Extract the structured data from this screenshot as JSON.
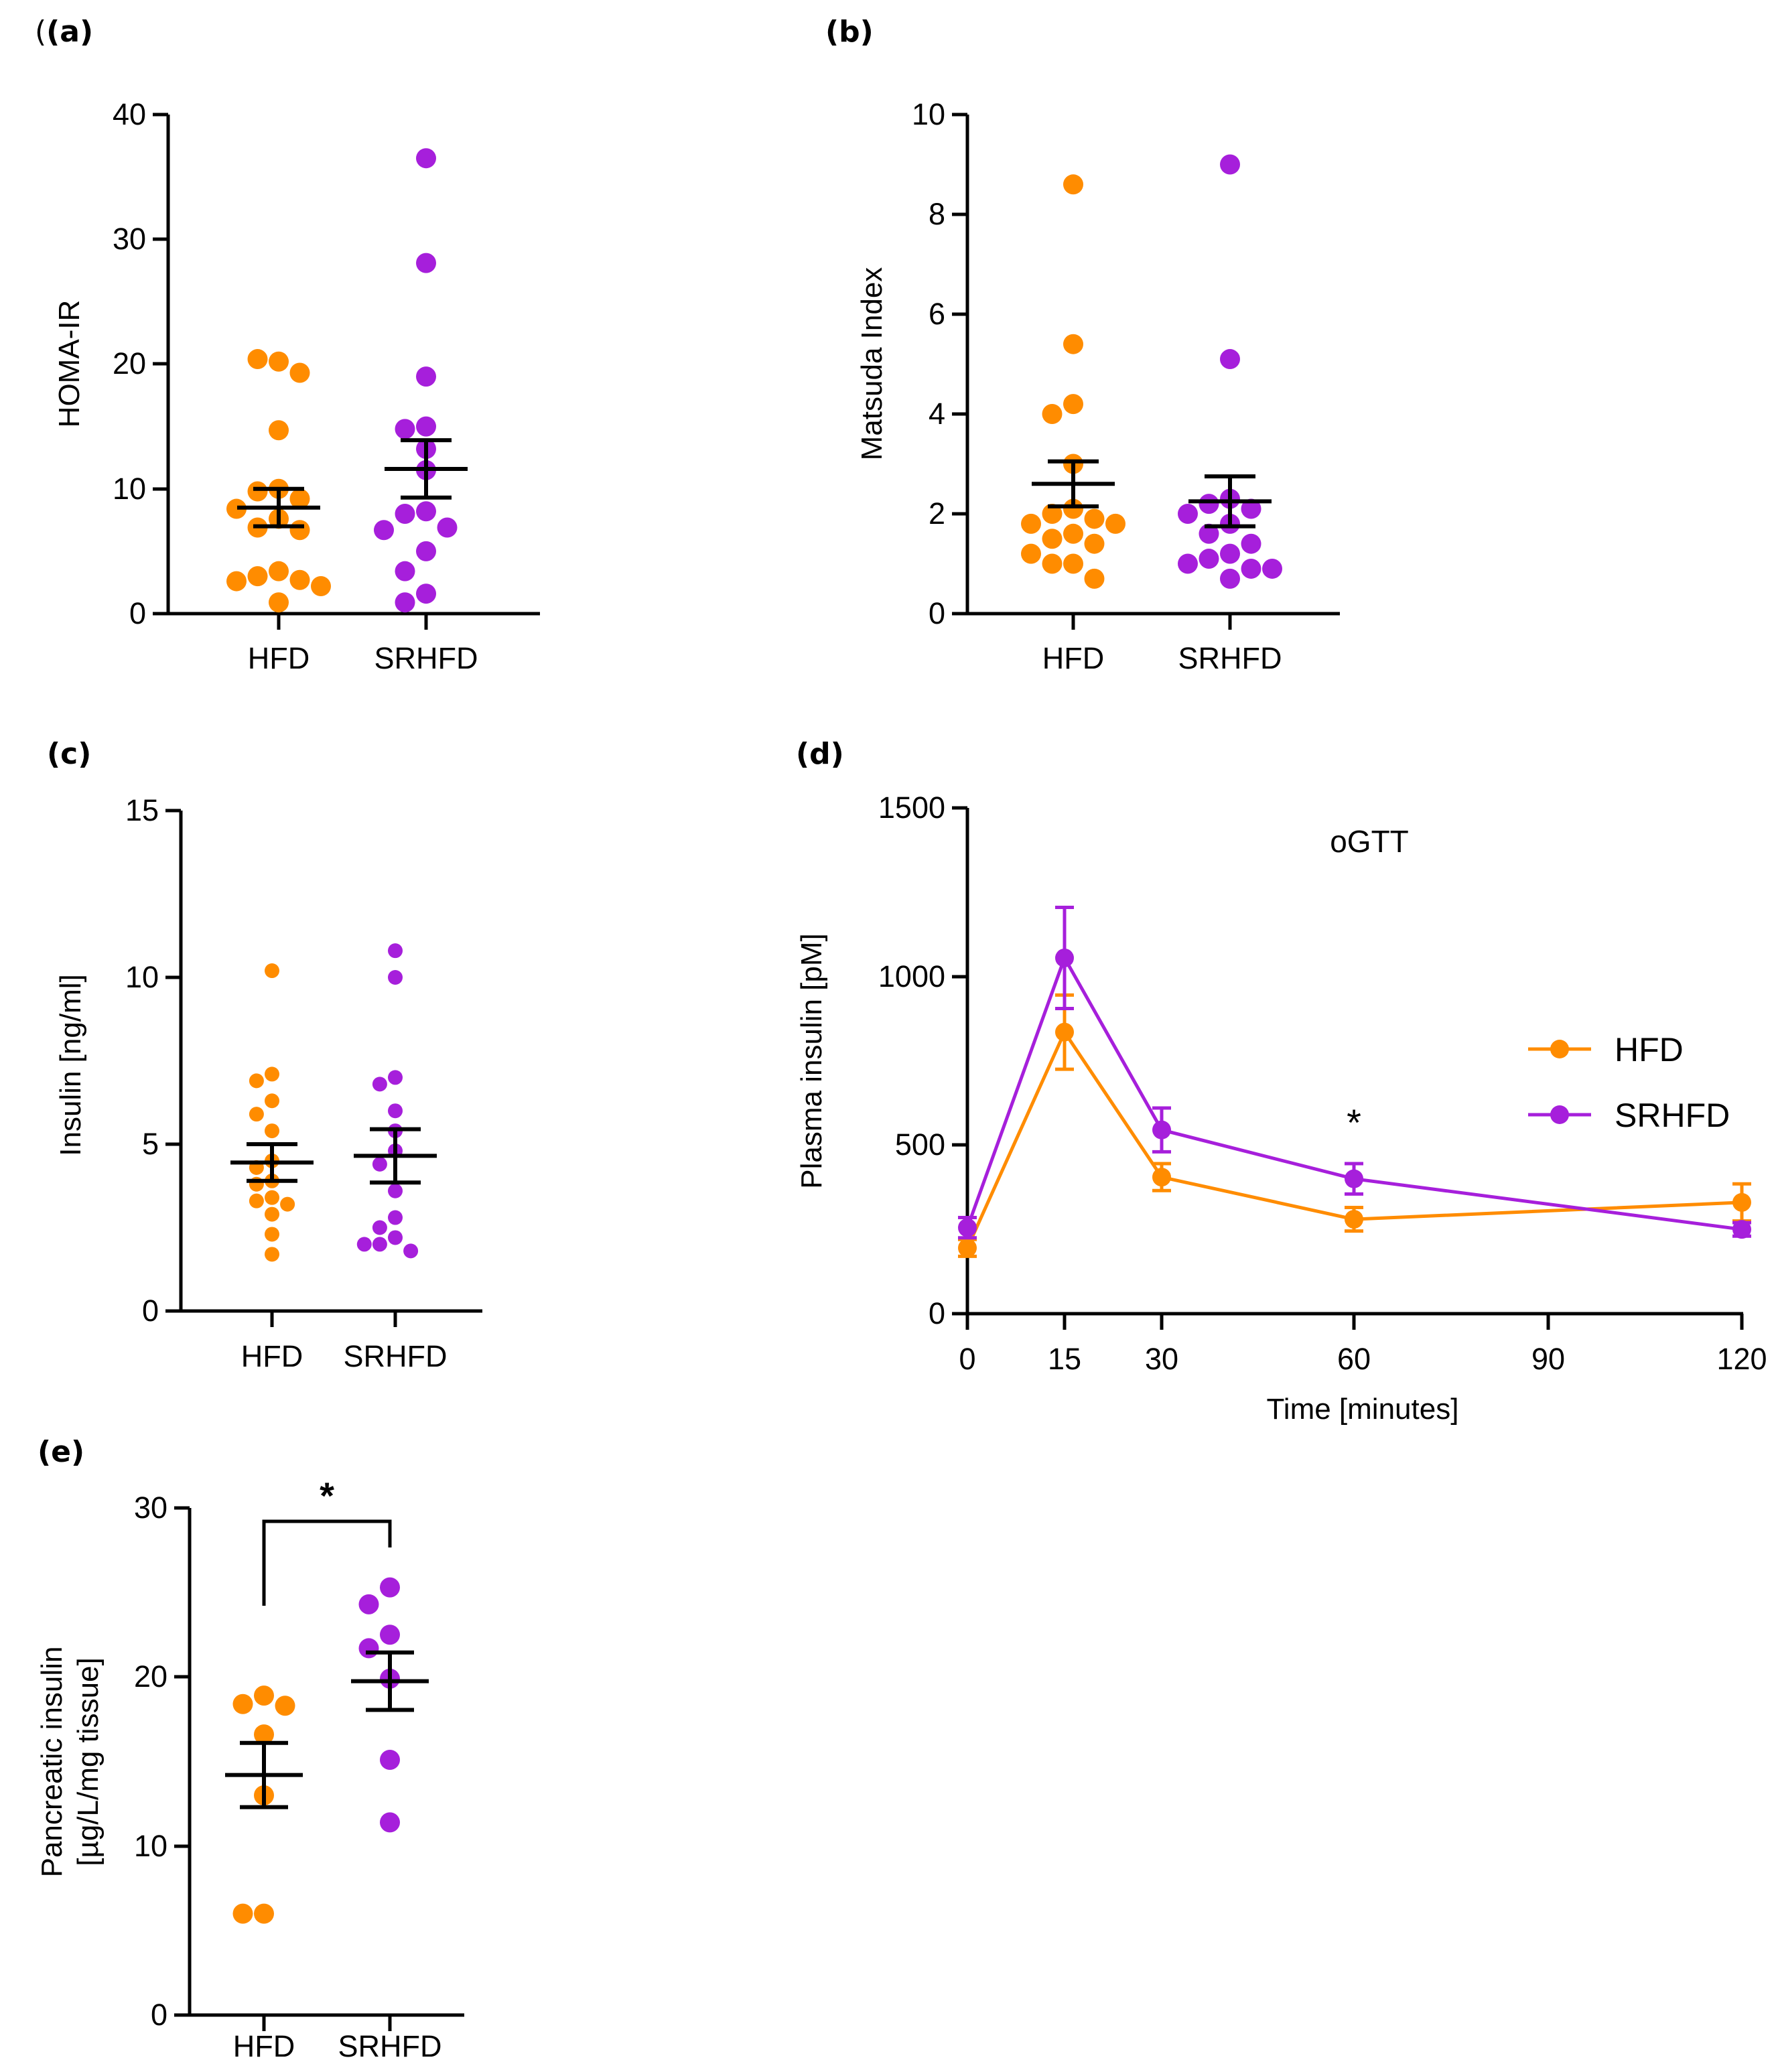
{
  "colors": {
    "HFD": "#FF8C00",
    "SRHFD": "#A61FDB",
    "axis": "#000000"
  },
  "chart_data": [
    {
      "id": "a",
      "panel_label": "(a)",
      "type": "scatter",
      "ylabel": "HOMA-IR",
      "ylim": [
        0,
        40
      ],
      "yticks": [
        "0",
        "10",
        "20",
        "30",
        "40"
      ],
      "categories": [
        "HFD",
        "SRHFD"
      ],
      "series": [
        {
          "name": "HFD",
          "points": [
            20.2,
            20.4,
            19.3,
            14.7,
            10.0,
            9.8,
            9.2,
            8.4,
            7.6,
            6.9,
            6.7,
            3.4,
            3.0,
            2.7,
            2.6,
            2.2,
            0.9
          ],
          "mean": 8.5,
          "sem": 1.5
        },
        {
          "name": "SRHFD",
          "points": [
            36.5,
            28.1,
            19.0,
            15.0,
            14.8,
            13.2,
            11.5,
            8.2,
            8.0,
            6.9,
            6.7,
            5.0,
            3.4,
            1.6,
            0.9
          ],
          "mean": 11.6,
          "sem": 2.3
        }
      ]
    },
    {
      "id": "b",
      "panel_label": "(b)",
      "type": "scatter",
      "ylabel": "Matsuda Index",
      "ylim": [
        0,
        10
      ],
      "yticks": [
        "0",
        "2",
        "4",
        "6",
        "8",
        "10"
      ],
      "categories": [
        "HFD",
        "SRHFD"
      ],
      "series": [
        {
          "name": "HFD",
          "points": [
            8.6,
            5.4,
            4.2,
            4.0,
            3.0,
            2.1,
            2.0,
            1.9,
            1.8,
            1.8,
            1.6,
            1.5,
            1.4,
            1.2,
            1.0,
            1.0,
            0.7
          ],
          "mean": 2.6,
          "sem": 0.45
        },
        {
          "name": "SRHFD",
          "points": [
            9.0,
            5.1,
            2.3,
            2.2,
            2.1,
            2.0,
            1.8,
            1.6,
            1.4,
            1.2,
            1.1,
            1.0,
            0.9,
            0.9,
            0.7
          ],
          "mean": 2.25,
          "sem": 0.5
        }
      ]
    },
    {
      "id": "c",
      "panel_label": "(c)",
      "type": "scatter",
      "ylabel": "Insulin [ng/ml]",
      "ylim": [
        0,
        15
      ],
      "yticks": [
        "0",
        "5",
        "10",
        "15"
      ],
      "categories": [
        "HFD",
        "SRHFD"
      ],
      "series": [
        {
          "name": "HFD",
          "points": [
            10.2,
            7.1,
            6.9,
            6.3,
            5.9,
            5.4,
            4.5,
            4.3,
            3.9,
            3.8,
            3.4,
            3.3,
            3.2,
            2.9,
            2.3,
            1.7
          ],
          "mean": 4.45,
          "sem": 0.55
        },
        {
          "name": "SRHFD",
          "points": [
            10.8,
            10.0,
            7.0,
            6.8,
            6.0,
            5.4,
            4.8,
            4.4,
            3.6,
            2.8,
            2.5,
            2.2,
            2.0,
            1.8,
            2.0
          ],
          "mean": 4.65,
          "sem": 0.8
        }
      ]
    },
    {
      "id": "d",
      "panel_label": "(d)",
      "type": "line",
      "title": "oGTT",
      "xlabel": "Time [minutes]",
      "ylabel": "Plasma insulin [pM]",
      "ylim": [
        0,
        1500
      ],
      "xticks": [
        "0",
        "15",
        "30",
        "60",
        "90",
        "120"
      ],
      "yticks": [
        "0",
        "500",
        "1000",
        "1500"
      ],
      "x": [
        0,
        15,
        30,
        60,
        120
      ],
      "series": [
        {
          "name": "HFD",
          "values": [
            195,
            835,
            405,
            280,
            330
          ],
          "err": [
            25,
            110,
            40,
            35,
            55
          ]
        },
        {
          "name": "SRHFD",
          "values": [
            255,
            1055,
            545,
            400,
            250
          ],
          "err": [
            30,
            150,
            65,
            45,
            20
          ]
        }
      ],
      "annotation": "*",
      "annotation_x": 60,
      "annotation_y": 580
    },
    {
      "id": "e",
      "panel_label": "(e)",
      "type": "scatter",
      "ylabel": "Pancreatic insulin",
      "ylabel2": "[µg/L/mg tissue]",
      "ylim": [
        0,
        30
      ],
      "yticks": [
        "0",
        "10",
        "20",
        "30"
      ],
      "categories": [
        "HFD",
        "SRHFD"
      ],
      "series": [
        {
          "name": "HFD",
          "points": [
            18.9,
            18.4,
            18.3,
            16.6,
            13.0,
            6.0,
            6.0
          ],
          "mean": 14.2,
          "sem": 1.9
        },
        {
          "name": "SRHFD",
          "points": [
            25.3,
            24.3,
            22.5,
            21.7,
            19.9,
            15.1,
            11.4
          ],
          "mean": 19.75,
          "sem": 1.7
        }
      ],
      "significance": "*"
    }
  ]
}
